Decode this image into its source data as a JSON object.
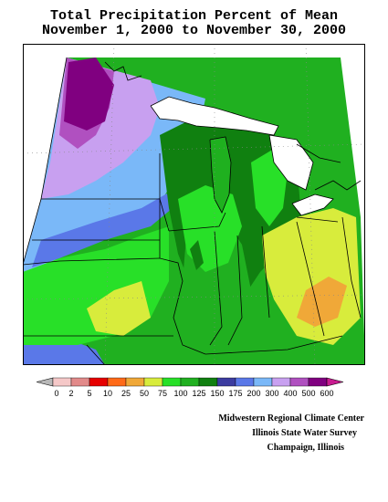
{
  "title": {
    "line1": "Total Precipitation Percent of Mean",
    "line2": "November 1, 2000 to November 30, 2000"
  },
  "legend": {
    "labels": [
      "0",
      "2",
      "5",
      "10",
      "25",
      "50",
      "75",
      "100",
      "125",
      "150",
      "175",
      "200",
      "300",
      "400",
      "500",
      "600"
    ],
    "colors": [
      "#f5c8c8",
      "#e28a8a",
      "#e60000",
      "#ff6a18",
      "#f0a838",
      "#d8ec3c",
      "#28e028",
      "#20b020",
      "#108010",
      "#3c3ca0",
      "#5a78e8",
      "#7ab8f8",
      "#c8a0f0",
      "#b050c0",
      "#800080",
      "#c81c90"
    ]
  },
  "credits": {
    "line1": "Midwestern Regional Climate Center",
    "line2": "Illinois State Water Survey",
    "line3": "Champaign, Illinois"
  },
  "palette": {
    "dark_green": "#108010",
    "green": "#20b020",
    "bright_green": "#28e028",
    "yellow_green": "#d8ec3c",
    "orange": "#f0a838",
    "blue": "#5a78e8",
    "light_blue": "#7ab8f8",
    "lavender": "#c8a0f0",
    "purple": "#b050c0",
    "dark_purple": "#800080",
    "magenta": "#c81c90"
  }
}
